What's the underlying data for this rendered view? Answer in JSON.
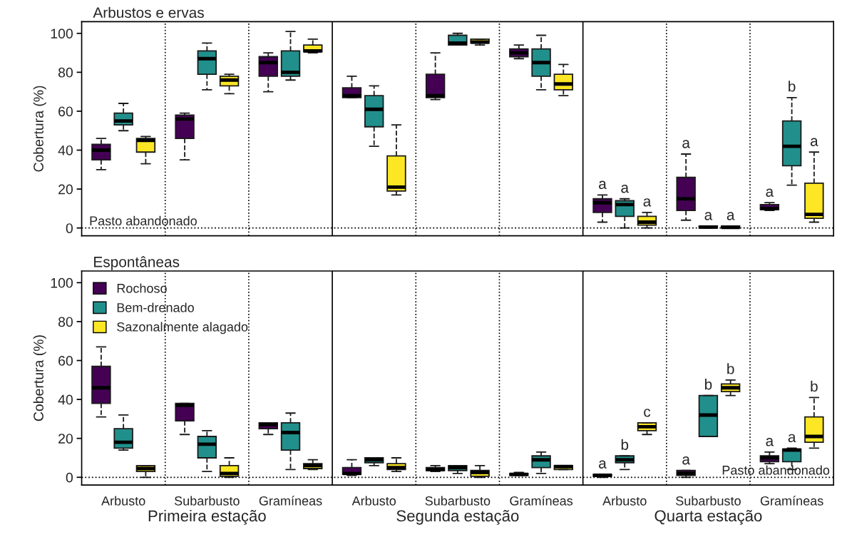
{
  "chart_data": [
    {
      "type": "box",
      "title": "Arbustos e ervas",
      "ylabel": "Cobertura (%)",
      "categories": [
        null,
        null,
        null,
        null,
        null,
        null,
        null,
        null,
        null
      ],
      "ylim": [
        -4,
        106
      ],
      "yticks": [
        0,
        20,
        40,
        60,
        80,
        100
      ],
      "ref_lines": [
        {
          "axis": "y",
          "value": 0,
          "label": "Pasto abandonado",
          "line_style": "dotted",
          "color": "#000000"
        }
      ],
      "series": [
        {
          "color": "#440154",
          "boxes": [
            {
              "low": 30,
              "q1": 35,
              "median": 40,
              "q3": 43,
              "high": 46
            },
            {
              "low": 35,
              "q1": 46,
              "median": 56,
              "q3": 58,
              "high": 59
            },
            {
              "low": 70,
              "q1": 78,
              "median": 85,
              "q3": 88,
              "high": 90
            },
            {
              "low": 67,
              "q1": 67,
              "median": 68,
              "q3": 72,
              "high": 78
            },
            {
              "low": 66,
              "q1": 67,
              "median": 68,
              "q3": 79,
              "high": 90
            },
            {
              "low": 87,
              "q1": 88,
              "median": 90,
              "q3": 92,
              "high": 94
            },
            {
              "low": 3,
              "q1": 8,
              "median": 13,
              "q3": 15,
              "high": 17
            },
            {
              "low": 4,
              "q1": 9,
              "median": 15,
              "q3": 26,
              "high": 38
            },
            {
              "low": 9,
              "q1": 9.5,
              "median": 10,
              "q3": 12,
              "high": 13
            }
          ],
          "value_labels": [
            null,
            null,
            null,
            null,
            null,
            null,
            "a",
            "a",
            "a"
          ]
        },
        {
          "color": "#21908c",
          "boxes": [
            {
              "low": 50,
              "q1": 53,
              "median": 55,
              "q3": 59,
              "high": 64
            },
            {
              "low": 71,
              "q1": 79,
              "median": 87,
              "q3": 91,
              "high": 95
            },
            {
              "low": 76,
              "q1": 78,
              "median": 80,
              "q3": 91,
              "high": 101
            },
            {
              "low": 42,
              "q1": 52,
              "median": 61,
              "q3": 68,
              "high": 73
            },
            {
              "low": 94,
              "q1": 94,
              "median": 95,
              "q3": 99,
              "high": 100
            },
            {
              "low": 71,
              "q1": 78,
              "median": 85,
              "q3": 92,
              "high": 99
            },
            {
              "low": 0,
              "q1": 6,
              "median": 12,
              "q3": 14,
              "high": 15
            },
            {
              "low": 0,
              "q1": 0,
              "median": 0.5,
              "q3": 1,
              "high": 1
            },
            {
              "low": 22,
              "q1": 32,
              "median": 42,
              "q3": 55,
              "high": 67
            }
          ],
          "value_labels": [
            null,
            null,
            null,
            null,
            null,
            null,
            "a",
            "a",
            "b"
          ]
        },
        {
          "color": "#fde725",
          "boxes": [
            {
              "low": 33,
              "q1": 39,
              "median": 45,
              "q3": 46,
              "high": 47
            },
            {
              "low": 69,
              "q1": 73,
              "median": 76,
              "q3": 78,
              "high": 79
            },
            {
              "low": 90,
              "q1": 90.5,
              "median": 91,
              "q3": 94,
              "high": 97
            },
            {
              "low": 17,
              "q1": 19,
              "median": 21,
              "q3": 37,
              "high": 53
            },
            {
              "low": 94,
              "q1": 95,
              "median": 95.5,
              "q3": 97,
              "high": 97
            },
            {
              "low": 68,
              "q1": 71,
              "median": 74,
              "q3": 79,
              "high": 84
            },
            {
              "low": 0,
              "q1": 1.5,
              "median": 3,
              "q3": 6,
              "high": 8
            },
            {
              "low": 0,
              "q1": 0,
              "median": 0.3,
              "q3": 1,
              "high": 1
            },
            {
              "low": 3,
              "q1": 5,
              "median": 7,
              "q3": 23,
              "high": 39
            }
          ],
          "value_labels": [
            null,
            null,
            null,
            null,
            null,
            null,
            "a",
            "a",
            "a"
          ]
        }
      ]
    },
    {
      "type": "box",
      "title": "Espontâneas",
      "ylabel": "Cobertura (%)",
      "categories": [
        "Arbusto",
        "Subarbusto",
        "Gramíneas",
        "Arbusto",
        "Subarbusto",
        "Gramíneas",
        "Arbusto",
        "Subarbusto",
        "Gramíneas"
      ],
      "ylim": [
        -4,
        106
      ],
      "yticks": [
        0,
        20,
        40,
        60,
        80,
        100
      ],
      "legend": "top left",
      "annotations": [
        "Primeira estação",
        "Segunda estação",
        "Quarta estação"
      ],
      "ref_lines": [
        {
          "axis": "y",
          "value": 0,
          "label": "Pasto abandonado",
          "line_style": "dotted",
          "color": "#000000"
        }
      ],
      "series": [
        {
          "name": "Rochoso",
          "color": "#440154",
          "boxes": [
            {
              "low": 31,
              "q1": 38,
              "median": 46,
              "q3": 57,
              "high": 67
            },
            {
              "low": 22,
              "q1": 29,
              "median": 37,
              "q3": 38,
              "high": 38
            },
            {
              "low": 22,
              "q1": 25,
              "median": 27,
              "q3": 28,
              "high": 28
            },
            {
              "low": 1,
              "q1": 1.5,
              "median": 2,
              "q3": 5,
              "high": 9
            },
            {
              "low": 3,
              "q1": 3.5,
              "median": 4,
              "q3": 5,
              "high": 6
            },
            {
              "low": 1,
              "q1": 1,
              "median": 1.5,
              "q3": 2,
              "high": 2.5
            },
            {
              "low": 0,
              "q1": 0.5,
              "median": 1,
              "q3": 1.5,
              "high": 1.5
            },
            {
              "low": 0,
              "q1": 1,
              "median": 2,
              "q3": 3.5,
              "high": 3.5
            },
            {
              "low": 7,
              "q1": 8,
              "median": 10,
              "q3": 11,
              "high": 13
            }
          ],
          "value_labels": [
            null,
            null,
            null,
            null,
            null,
            null,
            "a",
            "a",
            "a"
          ]
        },
        {
          "name": "Bem-drenado",
          "color": "#21908c",
          "boxes": [
            {
              "low": 14,
              "q1": 15,
              "median": 18,
              "q3": 25,
              "high": 32
            },
            {
              "low": 3,
              "q1": 10,
              "median": 17,
              "q3": 21,
              "high": 24
            },
            {
              "low": 4,
              "q1": 14,
              "median": 23,
              "q3": 28,
              "high": 33
            },
            {
              "low": 6,
              "q1": 7.5,
              "median": 9,
              "q3": 10,
              "high": 10
            },
            {
              "low": 2,
              "q1": 3.5,
              "median": 5,
              "q3": 6,
              "high": 6
            },
            {
              "low": 2,
              "q1": 5,
              "median": 9,
              "q3": 11,
              "high": 13
            },
            {
              "low": 4,
              "q1": 7.5,
              "median": 9,
              "q3": 11,
              "high": 11
            },
            {
              "low": 21,
              "q1": 21,
              "median": 32,
              "q3": 42,
              "high": 42
            },
            {
              "low": 4,
              "q1": 8,
              "median": 14,
              "q3": 14.5,
              "high": 15
            }
          ],
          "value_labels": [
            null,
            null,
            null,
            null,
            null,
            null,
            "b",
            "b",
            "a"
          ]
        },
        {
          "name": "Sazonalmente alagado",
          "color": "#fde725",
          "boxes": [
            {
              "low": 0,
              "q1": 3,
              "median": 4.5,
              "q3": 6,
              "high": 6
            },
            {
              "low": 0,
              "q1": 0.5,
              "median": 2,
              "q3": 6,
              "high": 10
            },
            {
              "low": 4,
              "q1": 4.5,
              "median": 6,
              "q3": 7,
              "high": 9
            },
            {
              "low": 3,
              "q1": 4,
              "median": 5,
              "q3": 7,
              "high": 10
            },
            {
              "low": 0,
              "q1": 0.5,
              "median": 2.5,
              "q3": 3.5,
              "high": 6
            },
            {
              "low": 4,
              "q1": 4,
              "median": 5.5,
              "q3": 6,
              "high": 6
            },
            {
              "low": 22,
              "q1": 24,
              "median": 26,
              "q3": 28,
              "high": 28
            },
            {
              "low": 42,
              "q1": 44,
              "median": 46,
              "q3": 48,
              "high": 50
            },
            {
              "low": 15,
              "q1": 18,
              "median": 21,
              "q3": 31,
              "high": 41
            }
          ],
          "value_labels": [
            null,
            null,
            null,
            null,
            null,
            null,
            "c",
            "b",
            "b"
          ]
        }
      ]
    }
  ]
}
